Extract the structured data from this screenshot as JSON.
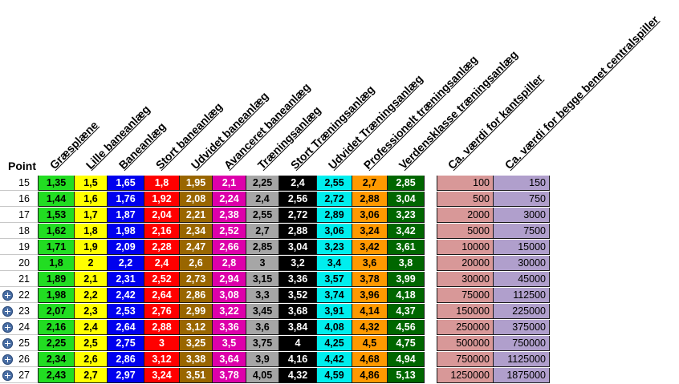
{
  "point_header": "Point",
  "columns": [
    {
      "label": "Græsplæne",
      "bg": "#22dd22",
      "fg": "#000000"
    },
    {
      "label": "Lille baneanlæg",
      "bg": "#ffff00",
      "fg": "#000000"
    },
    {
      "label": "Baneanlæg",
      "bg": "#0000ee",
      "fg": "#ffffff"
    },
    {
      "label": "Stort baneanlæg",
      "bg": "#ff0000",
      "fg": "#ffffff"
    },
    {
      "label": "Udvidet baneanlæg",
      "bg": "#996600",
      "fg": "#ffffff"
    },
    {
      "label": "Avanceret baneanlæg",
      "bg": "#dd00aa",
      "fg": "#ffffff"
    },
    {
      "label": "Træningsanlæg",
      "bg": "#a6a6a6",
      "fg": "#000000"
    },
    {
      "label": "Stort Træningsanlæg",
      "bg": "#000000",
      "fg": "#ffffff"
    },
    {
      "label": "Udvidet Træningsanlæg",
      "bg": "#00eeee",
      "fg": "#000000"
    },
    {
      "label": "Professionelt træningsanlæg",
      "bg": "#ff9900",
      "fg": "#000000"
    },
    {
      "label": "Verdensklasse træningsanlæg",
      "bg": "#006600",
      "fg": "#ffffff"
    },
    {
      "label": "Ca. værdi for kantspiller",
      "bg": "#d89898",
      "fg": "#000000"
    },
    {
      "label": "Ca. værdi for begge benet centralspiller",
      "bg": "#b09fcc",
      "fg": "#000000"
    }
  ],
  "rows": [
    {
      "point": "15",
      "expand": false,
      "values": [
        "1,35",
        "1,5",
        "1,65",
        "1,8",
        "1,95",
        "2,1",
        "2,25",
        "2,4",
        "2,55",
        "2,7",
        "2,85",
        "100",
        "150"
      ]
    },
    {
      "point": "16",
      "expand": false,
      "values": [
        "1,44",
        "1,6",
        "1,76",
        "1,92",
        "2,08",
        "2,24",
        "2,4",
        "2,56",
        "2,72",
        "2,88",
        "3,04",
        "500",
        "750"
      ]
    },
    {
      "point": "17",
      "expand": false,
      "values": [
        "1,53",
        "1,7",
        "1,87",
        "2,04",
        "2,21",
        "2,38",
        "2,55",
        "2,72",
        "2,89",
        "3,06",
        "3,23",
        "2000",
        "3000"
      ]
    },
    {
      "point": "18",
      "expand": false,
      "values": [
        "1,62",
        "1,8",
        "1,98",
        "2,16",
        "2,34",
        "2,52",
        "2,7",
        "2,88",
        "3,06",
        "3,24",
        "3,42",
        "5000",
        "7500"
      ]
    },
    {
      "point": "19",
      "expand": false,
      "values": [
        "1,71",
        "1,9",
        "2,09",
        "2,28",
        "2,47",
        "2,66",
        "2,85",
        "3,04",
        "3,23",
        "3,42",
        "3,61",
        "10000",
        "15000"
      ]
    },
    {
      "point": "20",
      "expand": false,
      "values": [
        "1,8",
        "2",
        "2,2",
        "2,4",
        "2,6",
        "2,8",
        "3",
        "3,2",
        "3,4",
        "3,6",
        "3,8",
        "20000",
        "30000"
      ]
    },
    {
      "point": "21",
      "expand": false,
      "values": [
        "1,89",
        "2,1",
        "2,31",
        "2,52",
        "2,73",
        "2,94",
        "3,15",
        "3,36",
        "3,57",
        "3,78",
        "3,99",
        "30000",
        "45000"
      ]
    },
    {
      "point": "22",
      "expand": true,
      "values": [
        "1,98",
        "2,2",
        "2,42",
        "2,64",
        "2,86",
        "3,08",
        "3,3",
        "3,52",
        "3,74",
        "3,96",
        "4,18",
        "75000",
        "112500"
      ]
    },
    {
      "point": "23",
      "expand": true,
      "values": [
        "2,07",
        "2,3",
        "2,53",
        "2,76",
        "2,99",
        "3,22",
        "3,45",
        "3,68",
        "3,91",
        "4,14",
        "4,37",
        "150000",
        "225000"
      ]
    },
    {
      "point": "24",
      "expand": true,
      "values": [
        "2,16",
        "2,4",
        "2,64",
        "2,88",
        "3,12",
        "3,36",
        "3,6",
        "3,84",
        "4,08",
        "4,32",
        "4,56",
        "250000",
        "375000"
      ]
    },
    {
      "point": "25",
      "expand": true,
      "values": [
        "2,25",
        "2,5",
        "2,75",
        "3",
        "3,25",
        "3,5",
        "3,75",
        "4",
        "4,25",
        "4,5",
        "4,75",
        "500000",
        "750000"
      ]
    },
    {
      "point": "26",
      "expand": true,
      "values": [
        "2,34",
        "2,6",
        "2,86",
        "3,12",
        "3,38",
        "3,64",
        "3,9",
        "4,16",
        "4,42",
        "4,68",
        "4,94",
        "750000",
        "1125000"
      ]
    },
    {
      "point": "27",
      "expand": true,
      "values": [
        "2,43",
        "2,7",
        "2,97",
        "3,24",
        "3,51",
        "3,78",
        "4,05",
        "4,32",
        "4,59",
        "4,86",
        "5,13",
        "1250000",
        "1875000"
      ]
    }
  ]
}
